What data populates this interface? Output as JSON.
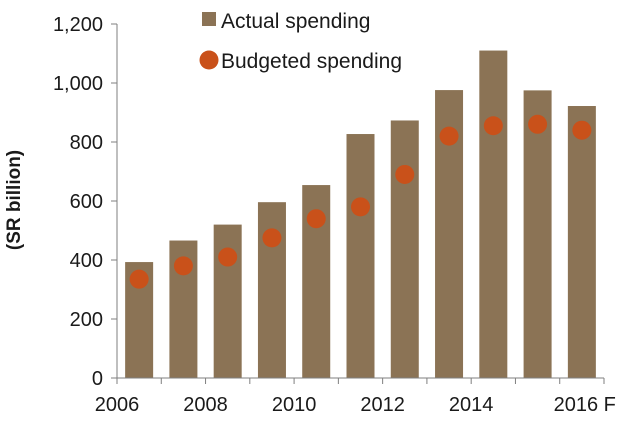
{
  "chart_data": {
    "type": "bar",
    "title": "",
    "xlabel": "",
    "ylabel": "(SR billion)",
    "ylim": [
      0,
      1200
    ],
    "yticks": [
      0,
      200,
      400,
      600,
      800,
      1000,
      1200
    ],
    "ytick_labels": [
      "0",
      "200",
      "400",
      "600",
      "800",
      "1,000",
      "1,200"
    ],
    "categories": [
      "2006",
      "2007",
      "2008",
      "2009",
      "2010",
      "2011",
      "2012",
      "2013",
      "2014",
      "2015",
      "2016 F"
    ],
    "x_tick_labels": [
      "2006",
      "",
      "2008",
      "",
      "2010",
      "",
      "2012",
      "",
      "2014",
      "",
      "2016 F"
    ],
    "grid": false,
    "legend_position": "top",
    "series": [
      {
        "name": "Actual spending",
        "kind": "bar",
        "color": "#8b7355",
        "values": [
          393,
          466,
          520,
          596,
          654,
          827,
          873,
          976,
          1110,
          975,
          922
        ]
      },
      {
        "name": "Budgeted spending",
        "kind": "scatter",
        "color": "#c9511a",
        "values": [
          335,
          380,
          410,
          475,
          540,
          580,
          690,
          820,
          855,
          860,
          840
        ]
      }
    ]
  }
}
